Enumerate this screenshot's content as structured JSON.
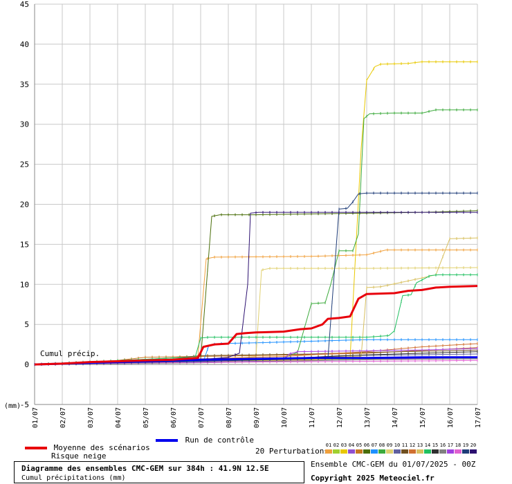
{
  "chart_data": {
    "type": "line",
    "ylabel": "(mm)",
    "annotation": "Cumul précip.",
    "ylim": [
      -5,
      45
    ],
    "yticks": [
      -5,
      0,
      5,
      10,
      15,
      20,
      25,
      30,
      35,
      40,
      45
    ],
    "xticks": [
      "01/07",
      "02/07",
      "03/07",
      "04/07",
      "05/07",
      "06/07",
      "07/07",
      "08/07",
      "09/07",
      "10/07",
      "11/07",
      "12/07",
      "13/07",
      "14/07",
      "15/07",
      "16/07",
      "17/07"
    ],
    "grid": true,
    "series": [
      {
        "name": "Moyenne des scénarios",
        "color": "#e8000b",
        "width": 3,
        "points": [
          [
            0,
            0
          ],
          [
            1,
            0.1
          ],
          [
            2,
            0.3
          ],
          [
            3,
            0.4
          ],
          [
            4,
            0.5
          ],
          [
            5,
            0.6
          ],
          [
            5.9,
            0.8
          ],
          [
            6.1,
            2.2
          ],
          [
            6.5,
            2.5
          ],
          [
            7,
            2.6
          ],
          [
            7.3,
            3.8
          ],
          [
            7.6,
            3.9
          ],
          [
            8,
            4.0
          ],
          [
            9,
            4.1
          ],
          [
            9.6,
            4.4
          ],
          [
            10,
            4.5
          ],
          [
            10.4,
            5.0
          ],
          [
            10.6,
            5.7
          ],
          [
            11,
            5.8
          ],
          [
            11.4,
            6.0
          ],
          [
            11.7,
            8.2
          ],
          [
            12,
            8.8
          ],
          [
            13,
            8.9
          ],
          [
            13.5,
            9.2
          ],
          [
            14,
            9.3
          ],
          [
            14.5,
            9.6
          ],
          [
            15,
            9.7
          ],
          [
            16,
            9.8
          ]
        ]
      },
      {
        "name": "Run de contrôle",
        "color": "#0000ee",
        "width": 3,
        "points": [
          [
            0,
            0
          ],
          [
            2,
            0.2
          ],
          [
            4,
            0.4
          ],
          [
            6,
            0.6
          ],
          [
            8,
            0.7
          ],
          [
            10,
            0.8
          ],
          [
            12,
            0.8
          ],
          [
            14,
            0.9
          ],
          [
            16,
            0.9
          ]
        ]
      },
      {
        "name": "01",
        "color": "#f0a03c",
        "points": [
          [
            0,
            0
          ],
          [
            5.5,
            0.6
          ],
          [
            5.9,
            1.0
          ],
          [
            6.2,
            13.2
          ],
          [
            6.5,
            13.4
          ],
          [
            10,
            13.5
          ],
          [
            12,
            13.7
          ],
          [
            12.7,
            14.3
          ],
          [
            16,
            14.3
          ]
        ]
      },
      {
        "name": "02",
        "color": "#a0d030",
        "points": [
          [
            0,
            0
          ],
          [
            4,
            0.3
          ],
          [
            8,
            0.5
          ],
          [
            12,
            0.7
          ],
          [
            16,
            0.8
          ]
        ]
      },
      {
        "name": "03",
        "color": "#e8c800",
        "points": [
          [
            0,
            0
          ],
          [
            6,
            0.4
          ],
          [
            10,
            0.6
          ],
          [
            11.4,
            0.8
          ],
          [
            11.8,
            27
          ],
          [
            12,
            35.5
          ],
          [
            12.3,
            37.2
          ],
          [
            12.5,
            37.5
          ],
          [
            13.5,
            37.6
          ],
          [
            14,
            37.8
          ],
          [
            16,
            37.8
          ]
        ]
      },
      {
        "name": "04",
        "color": "#9050d0",
        "points": [
          [
            0,
            0
          ],
          [
            4,
            0.2
          ],
          [
            8,
            0.4
          ],
          [
            12,
            0.6
          ],
          [
            16,
            0.9
          ]
        ]
      },
      {
        "name": "05",
        "color": "#c87820",
        "points": [
          [
            0,
            0
          ],
          [
            3,
            0.5
          ],
          [
            4,
            0.9
          ],
          [
            6,
            1.0
          ],
          [
            8,
            1.1
          ],
          [
            12,
            1.4
          ],
          [
            16,
            2.1
          ]
        ]
      },
      {
        "name": "06",
        "color": "#4a6e0a",
        "points": [
          [
            0,
            0
          ],
          [
            6,
            0.6
          ],
          [
            6.4,
            18.5
          ],
          [
            6.7,
            18.7
          ],
          [
            8,
            18.7
          ],
          [
            10,
            18.8
          ],
          [
            12,
            18.9
          ],
          [
            14,
            19.0
          ],
          [
            16,
            19.2
          ]
        ]
      },
      {
        "name": "07",
        "color": "#1e90ff",
        "points": [
          [
            0,
            0
          ],
          [
            5,
            0.2
          ],
          [
            6.1,
            0.4
          ],
          [
            6.3,
            2.4
          ],
          [
            6.6,
            2.6
          ],
          [
            8,
            2.7
          ],
          [
            10,
            2.9
          ],
          [
            12,
            3.1
          ],
          [
            16,
            3.1
          ]
        ]
      },
      {
        "name": "08",
        "color": "#3caa3c",
        "points": [
          [
            0,
            0
          ],
          [
            4,
            0.3
          ],
          [
            9,
            0.8
          ],
          [
            9.5,
            1.5
          ],
          [
            10,
            7.6
          ],
          [
            10.5,
            7.7
          ],
          [
            10.7,
            10
          ],
          [
            11,
            14.2
          ],
          [
            11.5,
            14.2
          ],
          [
            11.7,
            16.3
          ],
          [
            11.9,
            30.7
          ],
          [
            12.1,
            31.3
          ],
          [
            13,
            31.4
          ],
          [
            14,
            31.4
          ],
          [
            14.5,
            31.8
          ],
          [
            16,
            31.8
          ]
        ]
      },
      {
        "name": "09",
        "color": "#e0d070",
        "points": [
          [
            0,
            0
          ],
          [
            6,
            0.5
          ],
          [
            7,
            0.7
          ],
          [
            8,
            1.0
          ],
          [
            8.2,
            11.8
          ],
          [
            8.5,
            12.0
          ],
          [
            12,
            12.0
          ],
          [
            16,
            12.1
          ]
        ]
      },
      {
        "name": "10",
        "color": "#6060a0",
        "points": [
          [
            0,
            0
          ],
          [
            5,
            0.3
          ],
          [
            6,
            0.4
          ],
          [
            7,
            0.6
          ],
          [
            10,
            0.9
          ],
          [
            11,
            1.1
          ],
          [
            16,
            1.3
          ]
        ]
      },
      {
        "name": "11",
        "color": "#705020",
        "points": [
          [
            0,
            0
          ],
          [
            5,
            0.8
          ],
          [
            6,
            1.1
          ],
          [
            10,
            1.3
          ],
          [
            12,
            1.5
          ],
          [
            16,
            1.8
          ]
        ]
      },
      {
        "name": "12",
        "color": "#d07030",
        "points": [
          [
            0,
            0
          ],
          [
            3,
            0.4
          ],
          [
            6,
            0.7
          ],
          [
            9,
            1.0
          ],
          [
            12,
            1.6
          ],
          [
            14,
            2.2
          ],
          [
            16,
            2.6
          ]
        ]
      },
      {
        "name": "13",
        "color": "#d8c060",
        "points": [
          [
            0,
            0
          ],
          [
            6,
            0.6
          ],
          [
            9,
            0.8
          ],
          [
            11.8,
            1.0
          ],
          [
            12.0,
            9.6
          ],
          [
            12.5,
            9.7
          ],
          [
            14,
            10.8
          ],
          [
            14.5,
            11.2
          ],
          [
            15,
            15.7
          ],
          [
            16,
            15.8
          ]
        ]
      },
      {
        "name": "14",
        "color": "#20c060",
        "points": [
          [
            0,
            0
          ],
          [
            5,
            0.8
          ],
          [
            5.8,
            0.9
          ],
          [
            6,
            3.3
          ],
          [
            6.3,
            3.4
          ],
          [
            10,
            3.4
          ],
          [
            12,
            3.4
          ],
          [
            12.8,
            3.6
          ],
          [
            13,
            4.2
          ],
          [
            13.3,
            8.6
          ],
          [
            13.6,
            8.7
          ],
          [
            13.8,
            10.2
          ],
          [
            14.3,
            11.1
          ],
          [
            14.6,
            11.2
          ],
          [
            16,
            11.2
          ]
        ]
      },
      {
        "name": "15",
        "color": "#303030",
        "points": [
          [
            0,
            0
          ],
          [
            6,
            0.5
          ],
          [
            8,
            0.7
          ],
          [
            10,
            0.9
          ],
          [
            12,
            1.2
          ],
          [
            14,
            1.4
          ],
          [
            16,
            1.6
          ]
        ]
      },
      {
        "name": "16",
        "color": "#808080",
        "points": [
          [
            0,
            0
          ],
          [
            6,
            0.2
          ],
          [
            9,
            0.4
          ],
          [
            12,
            0.6
          ],
          [
            16,
            0.7
          ]
        ]
      },
      {
        "name": "17",
        "color": "#a040e0",
        "points": [
          [
            0,
            0
          ],
          [
            5,
            0.3
          ],
          [
            7,
            0.5
          ],
          [
            9,
            0.7
          ],
          [
            9.2,
            1.3
          ],
          [
            9.5,
            1.6
          ],
          [
            12,
            1.7
          ],
          [
            14,
            1.8
          ],
          [
            16,
            2.0
          ]
        ]
      },
      {
        "name": "18",
        "color": "#e060d0",
        "points": [
          [
            0,
            0
          ],
          [
            4,
            0.2
          ],
          [
            8,
            0.3
          ],
          [
            12,
            0.4
          ],
          [
            16,
            0.5
          ]
        ]
      },
      {
        "name": "19",
        "color": "#1e3c78",
        "points": [
          [
            0,
            0
          ],
          [
            6,
            0.4
          ],
          [
            10,
            0.7
          ],
          [
            10.6,
            0.8
          ],
          [
            11.0,
            19.4
          ],
          [
            11.3,
            19.5
          ],
          [
            11.5,
            20.3
          ],
          [
            11.7,
            21.3
          ],
          [
            12,
            21.4
          ],
          [
            16,
            21.4
          ]
        ]
      },
      {
        "name": "20",
        "color": "#2c1070",
        "points": [
          [
            0,
            0
          ],
          [
            6,
            0.6
          ],
          [
            7,
            0.9
          ],
          [
            7.4,
            1.4
          ],
          [
            7.7,
            10
          ],
          [
            7.8,
            18.9
          ],
          [
            8.1,
            19.0
          ],
          [
            12,
            19.0
          ],
          [
            16,
            19.0
          ]
        ]
      }
    ]
  },
  "legend": {
    "mean_label": "Moyenne des scénarios",
    "snow_label": "Risque neige",
    "control_label": "Run de contrôle",
    "perturbations_label": "20 Perturbations",
    "perturbation_numbers": [
      "01",
      "02",
      "03",
      "04",
      "05",
      "06",
      "07",
      "08",
      "09",
      "10",
      "11",
      "12",
      "13",
      "14",
      "15",
      "16",
      "17",
      "18",
      "19",
      "20"
    ],
    "perturbation_colors": [
      "#f0a03c",
      "#a0d030",
      "#e8c800",
      "#9050d0",
      "#c87820",
      "#4a6e0a",
      "#1e90ff",
      "#3caa3c",
      "#e0d070",
      "#6060a0",
      "#705020",
      "#d07030",
      "#d8c060",
      "#20c060",
      "#303030",
      "#808080",
      "#a040e0",
      "#e060d0",
      "#1e3c78",
      "#2c1070"
    ],
    "mean_color": "#e8000b",
    "control_color": "#0000ee"
  },
  "info": {
    "title": "Diagramme des ensembles CMC-GEM sur 384h : 41.9N 12.5E",
    "subtitle": "Cumul précipitations (mm)",
    "run": "Ensemble CMC-GEM du 01/07/2025 - 00Z",
    "copyright": "Copyright 2025 Meteociel.fr"
  }
}
